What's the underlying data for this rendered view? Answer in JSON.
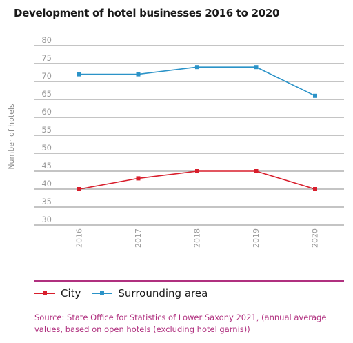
{
  "chart_data": {
    "type": "line",
    "title": "Development of hotel businesses 2016 to 2020",
    "ylabel": "Number of hotels",
    "xlabel": "",
    "categories": [
      "2016",
      "2017",
      "2018",
      "2019",
      "2020"
    ],
    "ylim": [
      30,
      80
    ],
    "yticks": [
      "30",
      "35",
      "40",
      "45",
      "50",
      "55",
      "60",
      "65",
      "70",
      "75",
      "80"
    ],
    "grid": true,
    "legend_position": "bottom-left",
    "series": [
      {
        "name": "City",
        "values": [
          40,
          43,
          45,
          45,
          40
        ],
        "color": "#d81e2c"
      },
      {
        "name": "Surrounding area",
        "values": [
          72,
          72,
          74,
          74,
          66
        ],
        "color": "#2b93c8"
      }
    ],
    "source": "Source: State Office for Statistics of Lower Saxony 2021, (annual average values, based on open hotels (excluding hotel garnis))"
  }
}
